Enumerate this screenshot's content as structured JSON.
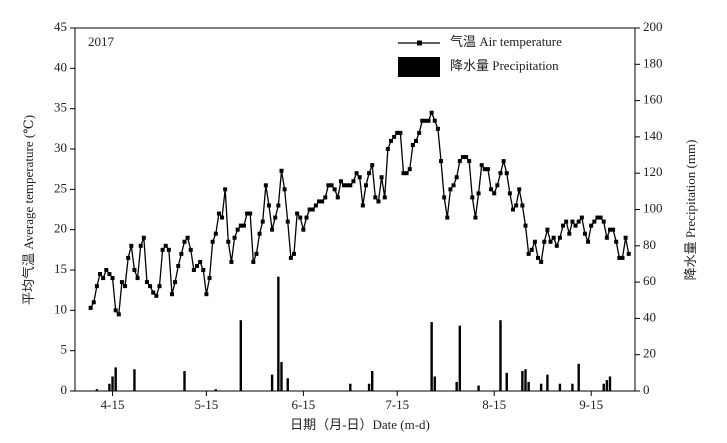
{
  "chart_data": {
    "type": "line-bar",
    "annotation": "2017",
    "x_label": "日期（月-日）Date (m-d)",
    "y_label": "平均气温 Average temperature (℃)",
    "y2_label": "降水量 Precipitation (mm)",
    "xlim": [
      93,
      272
    ],
    "xticks": [
      {
        "value": 105,
        "label": "4-15"
      },
      {
        "value": 135,
        "label": "5-15"
      },
      {
        "value": 166,
        "label": "6-15"
      },
      {
        "value": 196,
        "label": "7-15"
      },
      {
        "value": 227,
        "label": "8-15"
      },
      {
        "value": 258,
        "label": "9-15"
      }
    ],
    "ylim": [
      0,
      45
    ],
    "yticks": [
      0,
      5,
      10,
      15,
      20,
      25,
      30,
      35,
      40,
      45
    ],
    "y2lim": [
      0,
      200
    ],
    "y2ticks": [
      0,
      20,
      40,
      60,
      80,
      100,
      120,
      140,
      160,
      180,
      200
    ],
    "legend": "top-right",
    "series": [
      {
        "name": "气温 Air temperature",
        "type": "line",
        "color": "#000000",
        "x": [
          98,
          99,
          100,
          101,
          102,
          103,
          104,
          105,
          106,
          107,
          108,
          109,
          110,
          111,
          112,
          113,
          114,
          115,
          116,
          117,
          118,
          119,
          120,
          121,
          122,
          123,
          124,
          125,
          126,
          127,
          128,
          129,
          130,
          131,
          132,
          133,
          134,
          135,
          136,
          137,
          138,
          139,
          140,
          141,
          142,
          143,
          144,
          145,
          146,
          147,
          148,
          149,
          150,
          151,
          152,
          153,
          154,
          155,
          156,
          157,
          158,
          159,
          160,
          161,
          162,
          163,
          164,
          165,
          166,
          167,
          168,
          169,
          170,
          171,
          172,
          173,
          174,
          175,
          176,
          177,
          178,
          179,
          180,
          181,
          182,
          183,
          184,
          185,
          186,
          187,
          188,
          189,
          190,
          191,
          192,
          193,
          194,
          195,
          196,
          197,
          198,
          199,
          200,
          201,
          202,
          203,
          204,
          205,
          206,
          207,
          208,
          209,
          210,
          211,
          212,
          213,
          214,
          215,
          216,
          217,
          218,
          219,
          220,
          221,
          222,
          223,
          224,
          225,
          226,
          227,
          228,
          229,
          230,
          231,
          232,
          233,
          234,
          235,
          236,
          237,
          238,
          239,
          240,
          241,
          242,
          243,
          244,
          245,
          246,
          247,
          248,
          249,
          250,
          251,
          252,
          253,
          254,
          255,
          256,
          257,
          258,
          259,
          260,
          261,
          262,
          263,
          264,
          265,
          266,
          267,
          268,
          269,
          270
        ],
        "values": [
          10.3,
          11,
          13,
          14.5,
          14,
          15,
          14.5,
          14,
          10,
          9.5,
          13.5,
          13,
          16.5,
          18,
          15,
          14,
          18,
          19,
          13.5,
          13,
          12.2,
          11.8,
          13,
          17.5,
          18,
          17.5,
          12,
          13.5,
          15.5,
          17,
          18.5,
          19,
          17.5,
          15,
          15.5,
          16,
          15,
          12,
          14,
          18.5,
          19.5,
          22,
          21.5,
          25,
          18.5,
          16,
          19,
          20,
          20.5,
          20.5,
          22,
          22,
          16,
          17,
          19.5,
          21,
          25.5,
          23,
          20,
          21.5,
          23,
          27.3,
          25,
          21,
          16.5,
          17,
          22,
          21.5,
          20,
          21.5,
          22.5,
          22.5,
          23,
          23.5,
          23.5,
          24,
          25.5,
          25.5,
          25,
          24,
          26,
          25.5,
          25.5,
          25.5,
          26,
          27,
          26.5,
          23,
          25.5,
          27,
          28,
          24,
          23.5,
          26.5,
          24,
          30,
          31,
          31.5,
          32,
          32,
          27,
          27,
          27.5,
          30.5,
          31,
          32,
          33.5,
          33.5,
          33.5,
          34.5,
          33.5,
          32.5,
          28.5,
          24,
          21.5,
          25,
          25.5,
          26.5,
          28.5,
          29,
          29,
          28.5,
          24,
          21.5,
          24.5,
          28,
          27.5,
          27.5,
          25,
          24.5,
          25.5,
          27,
          28.5,
          27,
          24.5,
          22.5,
          23,
          25,
          23,
          20.5,
          17,
          17.5,
          18.5,
          16.5,
          16,
          18.5,
          20,
          18.5,
          19,
          18,
          19,
          20.5,
          21,
          19.5,
          21,
          20.5,
          21,
          21.5,
          19.5,
          18.5,
          20.5,
          21,
          21.5,
          21.5,
          21,
          19,
          20,
          20,
          18.5,
          16.5,
          16.5,
          19,
          17
        ]
      },
      {
        "name": "降水量 Precipitation",
        "type": "bar",
        "axis": "y2",
        "color": "#000000",
        "x": [
          100,
          104,
          105,
          106,
          112,
          128,
          138,
          146,
          156,
          158,
          159,
          161,
          181,
          187,
          188,
          207,
          208,
          215,
          216,
          222,
          229,
          231,
          236,
          237,
          238,
          242,
          244,
          248,
          252,
          254,
          262,
          263,
          264
        ],
        "values": [
          1,
          4,
          8,
          13,
          12,
          11,
          1,
          39,
          9,
          63,
          16,
          7,
          4,
          4,
          11,
          38,
          8,
          5,
          36,
          3,
          39,
          10,
          11,
          12,
          5,
          4,
          9,
          4,
          4,
          15,
          4,
          6,
          8
        ]
      }
    ]
  }
}
